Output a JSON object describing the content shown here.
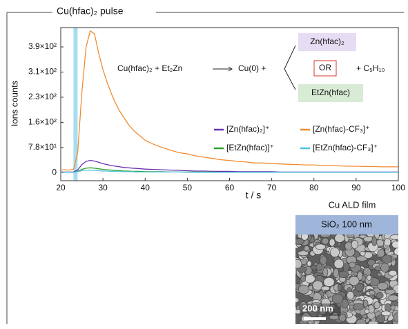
{
  "chart_data": {
    "type": "line",
    "ylabel": "Ions counts",
    "xlabel": "t / s",
    "xlim": [
      20,
      100
    ],
    "xticks": [
      20,
      30,
      40,
      50,
      60,
      70,
      80,
      90,
      100
    ],
    "ylim": [
      -25,
      450
    ],
    "yticks": [
      0,
      {
        "value": 78,
        "label": "7.8×10¹"
      },
      {
        "value": 156,
        "label": "1.6×10²"
      },
      {
        "value": 234,
        "label": "2.3×10²"
      },
      {
        "value": 312,
        "label": "3.1×10²"
      },
      {
        "value": 390,
        "label": "3.9×10²"
      }
    ],
    "pulse": {
      "text": "Cu(hfac)₂ pulse",
      "x": 23.5,
      "color": "#a8dcf0"
    },
    "x": [
      20,
      21,
      22,
      23,
      24,
      25,
      26,
      27,
      28,
      29,
      30,
      31,
      32,
      33,
      34,
      35,
      36,
      37,
      38,
      39,
      40,
      42,
      44,
      46,
      48,
      50,
      52,
      54,
      56,
      58,
      60,
      62,
      64,
      66,
      68,
      70,
      72,
      74,
      76,
      78,
      80,
      82,
      84,
      86,
      88,
      90,
      92,
      94,
      96,
      98,
      100
    ],
    "series": [
      {
        "name": "[Zn(hfac)-CF₃]⁺",
        "color": "#f28a2e",
        "values": [
          8,
          9,
          8,
          10,
          60,
          250,
          390,
          440,
          430,
          370,
          320,
          280,
          245,
          215,
          190,
          170,
          150,
          135,
          122,
          112,
          100,
          88,
          78,
          70,
          62,
          58,
          52,
          48,
          44,
          40,
          38,
          35,
          33,
          30,
          30,
          28,
          27,
          26,
          25,
          24,
          24,
          22,
          22,
          21,
          20,
          20,
          19,
          19,
          18,
          18,
          18
        ]
      },
      {
        "name": "[Zn(hfac)₂]⁺",
        "color": "#6a2fb0",
        "values": [
          2,
          2,
          2,
          2,
          8,
          25,
          35,
          38,
          36,
          32,
          28,
          25,
          22,
          20,
          18,
          16,
          15,
          14,
          13,
          12,
          11,
          10,
          9,
          8,
          7,
          6,
          5,
          5,
          4,
          4,
          4,
          3,
          3,
          3,
          3,
          3,
          2,
          2,
          2,
          2,
          2,
          2,
          2,
          2,
          2,
          2,
          2,
          2,
          2,
          2,
          2
        ]
      },
      {
        "name": "[EtZn(hfac)]⁺",
        "color": "#2ca02c",
        "values": [
          1,
          1,
          1,
          1,
          4,
          10,
          14,
          15,
          14,
          12,
          10,
          9,
          8,
          7,
          6,
          5,
          5,
          4,
          4,
          4,
          3,
          3,
          3,
          2,
          2,
          2,
          2,
          2,
          2,
          1,
          1,
          1,
          1,
          1,
          1,
          1,
          1,
          1,
          1,
          1,
          1,
          1,
          1,
          1,
          1,
          1,
          1,
          1,
          1,
          1,
          1
        ]
      },
      {
        "name": "[EtZn(hfac)-CF₃]⁺",
        "color": "#4cc3e0",
        "values": [
          1,
          1,
          1,
          1,
          3,
          6,
          8,
          8,
          7,
          6,
          5,
          5,
          4,
          4,
          3,
          3,
          3,
          3,
          2,
          2,
          2,
          2,
          2,
          2,
          2,
          1,
          1,
          1,
          1,
          1,
          1,
          1,
          1,
          1,
          1,
          1,
          1,
          1,
          1,
          1,
          1,
          1,
          1,
          1,
          1,
          1,
          1,
          1,
          1,
          1,
          1
        ]
      }
    ],
    "reaction": {
      "reactants": "Cu(hfac)₂ + Et₂Zn",
      "product": "Cu(0) +",
      "option1": "Zn(hfac)₂",
      "or": "OR",
      "option2": "EtZn(hfac)",
      "byproduct": "+ C₅H₁₀"
    },
    "inset": {
      "title": "Cu ALD film",
      "layer": "SiO₂ 100 nm",
      "scale": "200 nm"
    }
  }
}
